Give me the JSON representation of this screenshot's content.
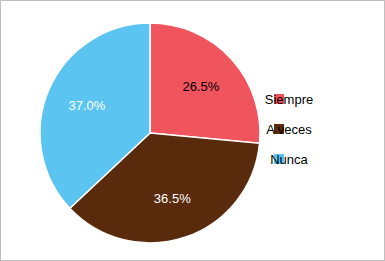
{
  "chart_data": {
    "type": "pie",
    "categories": [
      "Siempre",
      "A veces",
      "Nunca"
    ],
    "values": [
      26.5,
      36.5,
      37.0
    ],
    "value_labels": [
      "26.5%",
      "36.5%",
      "37.0%"
    ],
    "colors": [
      "#f0545c",
      "#5a2a0c",
      "#5bc4f1"
    ],
    "data_labels": true,
    "legend": "right"
  }
}
